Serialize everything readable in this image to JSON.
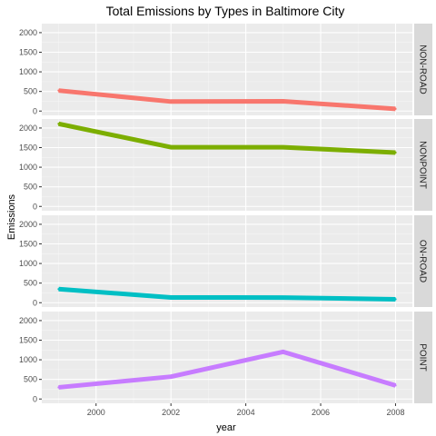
{
  "chart_data": {
    "type": "line",
    "title": "Total Emissions by Types in Baltimore City",
    "xlabel": "year",
    "ylabel": "Emissions",
    "x": [
      1999,
      2002,
      2005,
      2008
    ],
    "xlim": [
      1998.55,
      2008.45
    ],
    "ylim": [
      -110,
      2230
    ],
    "xticks": [
      "2000",
      "2002",
      "2004",
      "2006",
      "2008"
    ],
    "yticks": [
      "0",
      "500",
      "1000",
      "1500",
      "2000"
    ],
    "grid": true,
    "legend": "none",
    "facets": [
      {
        "name": "NON-ROAD",
        "color": "#F8766D",
        "values": [
          522.9,
          241.9,
          248.9,
          55.8
        ]
      },
      {
        "name": "NONPOINT",
        "color": "#7CAE00",
        "values": [
          2107.6,
          1509.5,
          1509.5,
          1373.2
        ]
      },
      {
        "name": "ON-ROAD",
        "color": "#00BFC4",
        "values": [
          346.8,
          134.3,
          130.4,
          88.3
        ]
      },
      {
        "name": "POINT",
        "color": "#C77CFF",
        "values": [
          296.8,
          569.3,
          1202.5,
          344.98
        ]
      }
    ]
  }
}
